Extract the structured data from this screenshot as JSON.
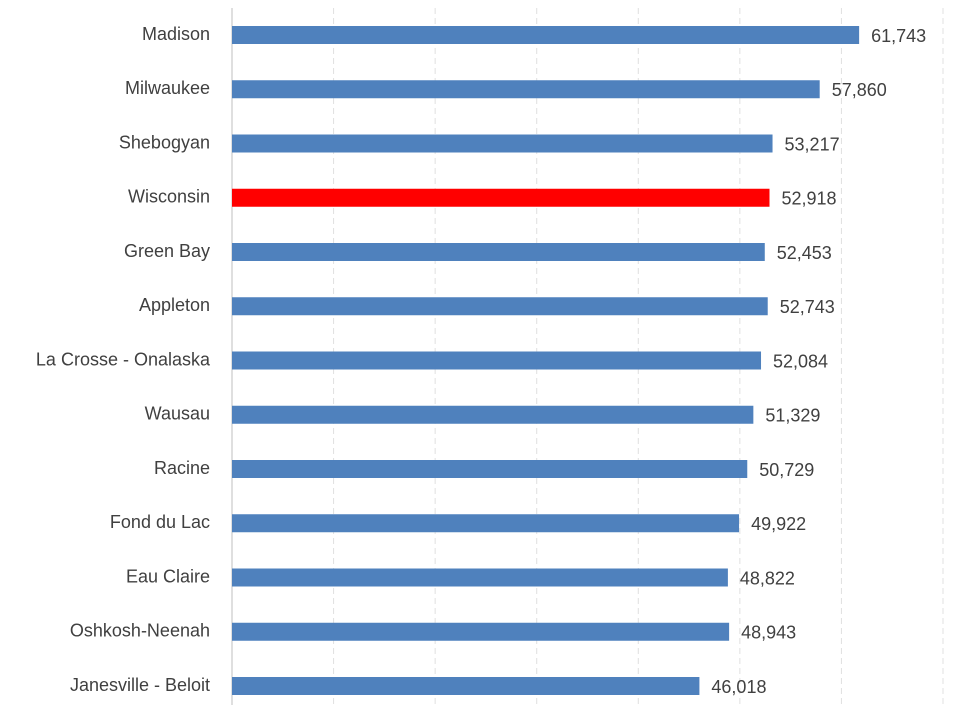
{
  "chart_data": {
    "type": "bar",
    "orientation": "horizontal",
    "categories": [
      "Madison",
      "Milwaukee",
      "Shebogyan",
      "Wisconsin",
      "Green Bay",
      "Appleton",
      "La Crosse - Onalaska",
      "Wausau",
      "Racine",
      "Fond du Lac",
      "Eau Claire",
      "Oshkosh-Neenah",
      "Janesville - Beloit"
    ],
    "values": [
      61743,
      57860,
      53217,
      52918,
      52453,
      52743,
      52084,
      51329,
      50729,
      49922,
      48822,
      48943,
      46018
    ],
    "value_labels": [
      "61,743",
      "57,860",
      "53,217",
      "52,918",
      "52,453",
      "52,743",
      "52,084",
      "51,329",
      "50,729",
      "49,922",
      "48,822",
      "48,943",
      "46,018"
    ],
    "colors": [
      "#4f81bd",
      "#4f81bd",
      "#4f81bd",
      "#ff0000",
      "#4f81bd",
      "#4f81bd",
      "#4f81bd",
      "#4f81bd",
      "#4f81bd",
      "#4f81bd",
      "#4f81bd",
      "#4f81bd",
      "#4f81bd"
    ],
    "xlim": [
      0,
      70000
    ],
    "xticks": [
      0,
      10000,
      20000,
      30000,
      40000,
      50000,
      60000,
      70000
    ],
    "grid": true
  }
}
